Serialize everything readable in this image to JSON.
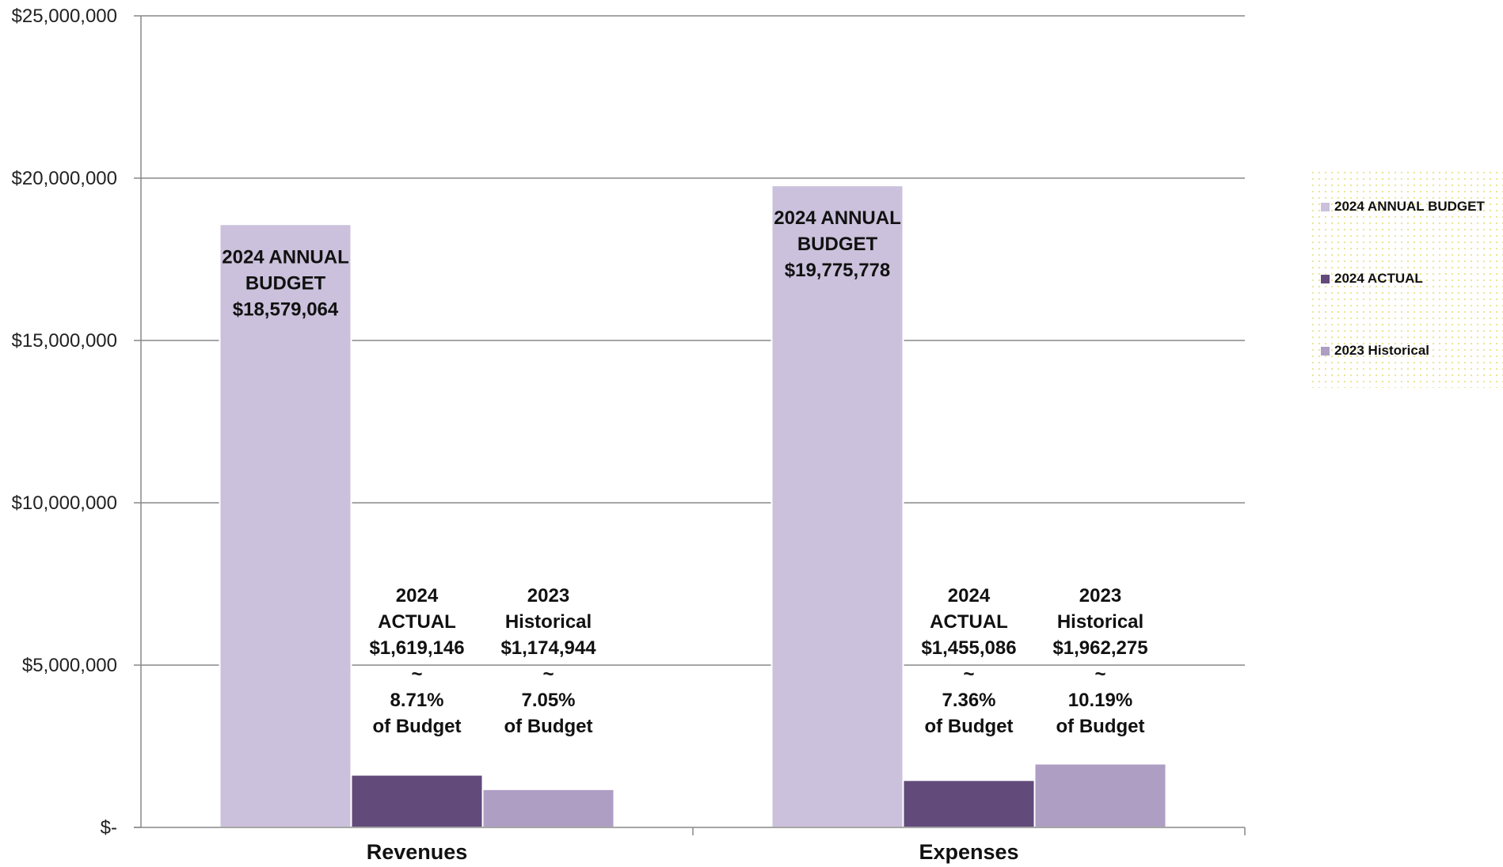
{
  "chart_data": {
    "type": "bar",
    "categories": [
      "Revenues",
      "Expenses"
    ],
    "series": [
      {
        "name": "2024 ANNUAL BUDGET",
        "values": [
          18579064,
          19775778
        ],
        "color": "#cbc1dc"
      },
      {
        "name": "2024 ACTUAL",
        "values": [
          1619146,
          1455086
        ],
        "color": "#624a7b"
      },
      {
        "name": "2023 Historical",
        "values": [
          1174944,
          1962275
        ],
        "color": "#ae9ec4"
      }
    ],
    "ylim": [
      0,
      25000000
    ],
    "yticks": [
      {
        "value": 0,
        "label": "$-"
      },
      {
        "value": 5000000,
        "label": "$5,000,000"
      },
      {
        "value": 10000000,
        "label": "$10,000,000"
      },
      {
        "value": 15000000,
        "label": "$15,000,000"
      },
      {
        "value": 20000000,
        "label": "$20,000,000"
      },
      {
        "value": 25000000,
        "label": "$25,000,000"
      }
    ],
    "data_labels": [
      [
        [
          "2024 ANNUAL",
          "BUDGET",
          "$18,579,064"
        ],
        [
          "2024",
          "ACTUAL",
          "$1,619,146",
          "~",
          "8.71%",
          "of Budget"
        ],
        [
          "2023",
          "Historical",
          "$1,174,944",
          "~",
          "7.05%",
          "of Budget"
        ]
      ],
      [
        [
          "2024 ANNUAL",
          "BUDGET",
          "$19,775,778"
        ],
        [
          "2024",
          "ACTUAL",
          "$1,455,086",
          "~",
          "7.36%",
          "of Budget"
        ],
        [
          "2023",
          "Historical",
          "$1,962,275",
          "~",
          "10.19%",
          "of Budget"
        ]
      ]
    ],
    "grid": true,
    "legend_position": "right",
    "legend_background": "#fffde3",
    "title": "",
    "xlabel": "",
    "ylabel": ""
  }
}
